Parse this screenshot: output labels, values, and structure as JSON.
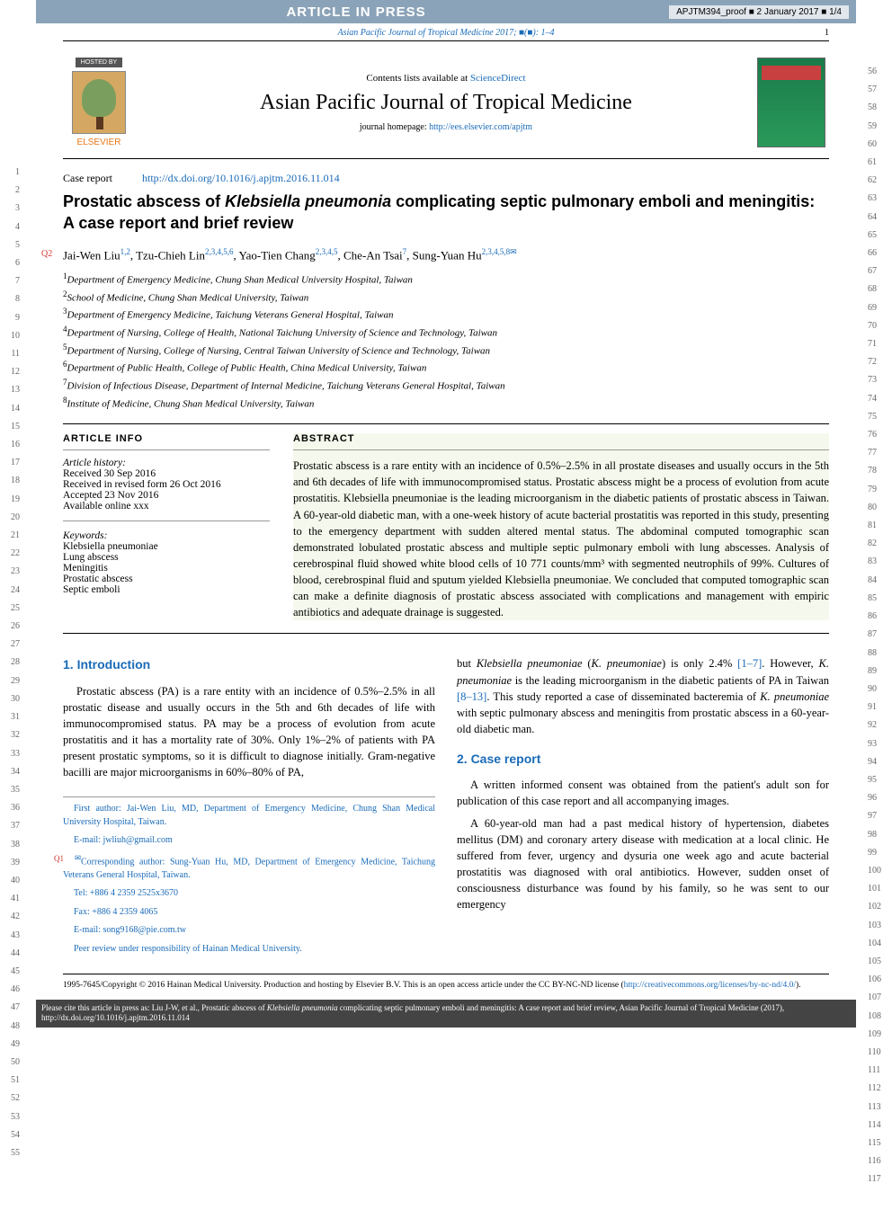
{
  "proof": {
    "aip": "ARTICLE IN PRESS",
    "info": "APJTM394_proof ■ 2 January 2017 ■ 1/4"
  },
  "citeLine": {
    "text": "Asian Pacific Journal of Tropical Medicine 2017; ■(■): 1–4",
    "pageNum": "1"
  },
  "masthead": {
    "hosted": "HOSTED BY",
    "elsevier": "ELSEVIER",
    "contents": "Contents lists available at ",
    "contentsLink": "ScienceDirect",
    "journalName": "Asian Pacific Journal of Tropical Medicine",
    "homepageLabel": "journal homepage: ",
    "homepageLink": "http://ees.elsevier.com/apjtm",
    "coverTitle": "Tropical Medicine"
  },
  "article": {
    "type": "Case report",
    "doi": "http://dx.doi.org/10.1016/j.apjtm.2016.11.014",
    "title_pre": "Prostatic abscess of ",
    "title_em": "Klebsiella pneumonia",
    "title_post": " complicating septic pulmonary emboli and meningitis: A case report and brief review",
    "q2": "Q2",
    "authors_html": "Jai-Wen Liu",
    "a1_sup": "1,2",
    "a2": ", Tzu-Chieh Lin",
    "a2_sup": "2,3,4,5,6",
    "a3": ", Yao-Tien Chang",
    "a3_sup": "2,3,4,5",
    "a4": ", Che-An Tsai",
    "a4_sup": "7",
    "a5": ", Sung-Yuan Hu",
    "a5_sup": "2,3,4,5,8✉"
  },
  "affiliations": [
    {
      "n": "1",
      "t": "Department of Emergency Medicine, Chung Shan Medical University Hospital, Taiwan"
    },
    {
      "n": "2",
      "t": "School of Medicine, Chung Shan Medical University, Taiwan"
    },
    {
      "n": "3",
      "t": "Department of Emergency Medicine, Taichung Veterans General Hospital, Taiwan"
    },
    {
      "n": "4",
      "t": "Department of Nursing, College of Health, National Taichung University of Science and Technology, Taiwan"
    },
    {
      "n": "5",
      "t": "Department of Nursing, College of Nursing, Central Taiwan University of Science and Technology, Taiwan"
    },
    {
      "n": "6",
      "t": "Department of Public Health, College of Public Health, China Medical University, Taiwan"
    },
    {
      "n": "7",
      "t": "Division of Infectious Disease, Department of Internal Medicine, Taichung Veterans General Hospital, Taiwan"
    },
    {
      "n": "8",
      "t": "Institute of Medicine, Chung Shan Medical University, Taiwan"
    }
  ],
  "info": {
    "header": "ARTICLE INFO",
    "historyLabel": "Article history:",
    "history": [
      "Received 30 Sep 2016",
      "Received in revised form 26 Oct 2016",
      "Accepted 23 Nov 2016",
      "Available online xxx"
    ],
    "keywordsLabel": "Keywords:",
    "keywords": [
      "Klebsiella pneumoniae",
      "Lung abscess",
      "Meningitis",
      "Prostatic abscess",
      "Septic emboli"
    ]
  },
  "abstract": {
    "header": "ABSTRACT",
    "text": "Prostatic abscess is a rare entity with an incidence of 0.5%–2.5% in all prostate diseases and usually occurs in the 5th and 6th decades of life with immunocompromised status. Prostatic abscess might be a process of evolution from acute prostatitis. Klebsiella pneumoniae is the leading microorganism in the diabetic patients of prostatic abscess in Taiwan. A 60-year-old diabetic man, with a one-week history of acute bacterial prostatitis was reported in this study, presenting to the emergency department with sudden altered mental status. The abdominal computed tomographic scan demonstrated lobulated prostatic abscess and multiple septic pulmonary emboli with lung abscesses. Analysis of cerebrospinal fluid showed white blood cells of 10 771 counts/mm³ with segmented neutrophils of 99%. Cultures of blood, cerebrospinal fluid and sputum yielded Klebsiella pneumoniae. We concluded that computed tomographic scan can make a definite diagnosis of prostatic abscess associated with complications and management with empiric antibiotics and adequate drainage is suggested."
  },
  "sections": {
    "introTitle": "1. Introduction",
    "introText": "Prostatic abscess (PA) is a rare entity with an incidence of 0.5%–2.5% in all prostatic disease and usually occurs in the 5th and 6th decades of life with immunocompromised status. PA may be a process of evolution from acute prostatitis and it has a mortality rate of 30%. Only 1%–2% of patients with PA present prostatic symptoms, so it is difficult to diagnose initially. Gram-negative bacilli are major microorganisms in 60%–80% of PA,",
    "introCont_pre": "but ",
    "introCont_em1": "Klebsiella pneumoniae",
    "introCont_mid1": " (",
    "introCont_em2": "K. pneumoniae",
    "introCont_mid2": ") is only 2.4% ",
    "introCont_ref1": "[1–7]",
    "introCont_mid3": ". However, ",
    "introCont_em3": "K. pneumoniae",
    "introCont_mid4": " is the leading microorganism in the diabetic patients of PA in Taiwan ",
    "introCont_ref2": "[8–13]",
    "introCont_mid5": ". This study reported a case of disseminated bacteremia of ",
    "introCont_em4": "K. pneumoniae",
    "introCont_end": " with septic pulmonary abscess and meningitis from prostatic abscess in a 60-year-old diabetic man.",
    "caseTitle": "2. Case report",
    "caseP1": "A written informed consent was obtained from the patient's adult son for publication of this case report and all accompanying images.",
    "caseP2": "A 60-year-old man had a past medical history of hypertension, diabetes mellitus (DM) and coronary artery disease with medication at a local clinic. He suffered from fever, urgency and dysuria one week ago and acute bacterial prostatitis was diagnosed with oral antibiotics. However, sudden onset of consciousness disturbance was found by his family, so he was sent to our emergency"
  },
  "footnotes": {
    "first": "First author: Jai-Wen Liu, MD, Department of Emergency Medicine, Chung Shan Medical University Hospital, Taiwan.",
    "email1label": "E-mail: ",
    "email1": "jwliuh@gmail.com",
    "corr": "Corresponding author: Sung-Yuan Hu, MD, Department of Emergency Medicine, Taichung Veterans General Hospital, Taiwan.",
    "q1": "Q1",
    "tel": "Tel: +886 4 2359 2525x3670",
    "fax": "Fax: +886 4 2359 4065",
    "email2label": "E-mail: ",
    "email2": "song9168@pie.com.tw",
    "peer": "Peer review under responsibility of Hainan Medical University."
  },
  "copyright": {
    "text": "1995-7645/Copyright © 2016 Hainan Medical University. Production and hosting by Elsevier B.V. This is an open access article under the CC BY-NC-ND license (",
    "link": "http://creativecommons.org/licenses/by-nc-nd/4.0/",
    "close": ")."
  },
  "pleasecite": {
    "pre": "Please cite this article in press as: Liu J-W, et al., Prostatic abscess of ",
    "em": "Klebsiella pneumonia",
    "post": " complicating septic pulmonary emboli and meningitis: A case report and brief review, Asian Pacific Journal of Tropical Medicine (2017), http://dx.doi.org/10.1016/j.apjtm.2016.11.014"
  },
  "linenums": {
    "leftStart": 1,
    "leftEnd": 55,
    "rightStart": 56,
    "rightEnd": 117
  }
}
